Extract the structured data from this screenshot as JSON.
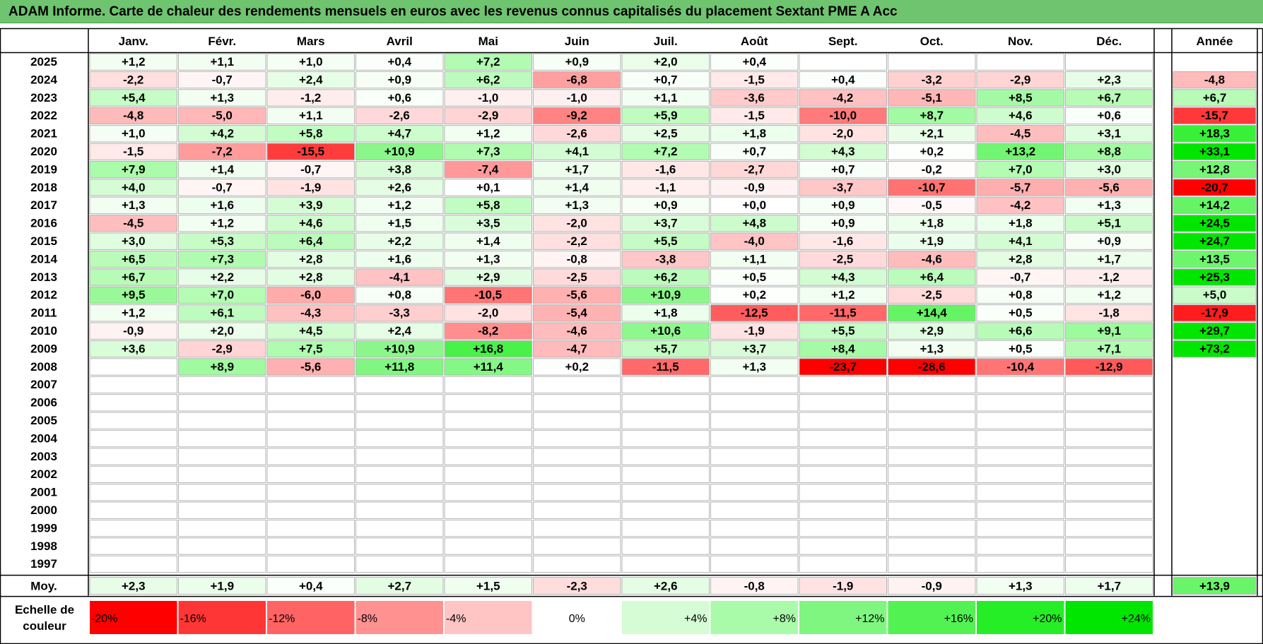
{
  "title": "ADAM Informe. Carte de chaleur des rendements mensuels en euros avec les revenus connus capitalisés du placement Sextant PME A Acc",
  "chart_data": {
    "type": "heatmap",
    "title": "ADAM Informe. Carte de chaleur des rendements mensuels en euros avec les revenus connus capitalisés du placement Sextant PME A Acc",
    "months": [
      "Janv.",
      "Févr.",
      "Mars",
      "Avril",
      "Mai",
      "Juin",
      "Juil.",
      "Août",
      "Sept.",
      "Oct.",
      "Nov.",
      "Déc."
    ],
    "year_header": "Année",
    "rows": [
      {
        "label": "2025",
        "months": [
          "+1,2",
          "+1,1",
          "+1,0",
          "+0,4",
          "+7,2",
          "+0,9",
          "+2,0",
          "+0,4",
          "",
          "",
          "",
          ""
        ],
        "year": ""
      },
      {
        "label": "2024",
        "months": [
          "-2,2",
          "-0,7",
          "+2,4",
          "+0,9",
          "+6,2",
          "-6,8",
          "+0,7",
          "-1,5",
          "+0,4",
          "-3,2",
          "-2,9",
          "+2,3"
        ],
        "year": "-4,8"
      },
      {
        "label": "2023",
        "months": [
          "+5,4",
          "+1,3",
          "-1,2",
          "+0,6",
          "-1,0",
          "-1,0",
          "+1,1",
          "-3,6",
          "-4,2",
          "-5,1",
          "+8,5",
          "+6,7"
        ],
        "year": "+6,7"
      },
      {
        "label": "2022",
        "months": [
          "-4,8",
          "-5,0",
          "+1,1",
          "-2,6",
          "-2,9",
          "-9,2",
          "+5,9",
          "-1,5",
          "-10,0",
          "+8,7",
          "+4,6",
          "+0,6"
        ],
        "year": "-15,7"
      },
      {
        "label": "2021",
        "months": [
          "+1,0",
          "+4,2",
          "+5,8",
          "+4,7",
          "+1,2",
          "-2,6",
          "+2,5",
          "+1,8",
          "-2,0",
          "+2,1",
          "-4,5",
          "+3,1"
        ],
        "year": "+18,3"
      },
      {
        "label": "2020",
        "months": [
          "-1,5",
          "-7,2",
          "-15,5",
          "+10,9",
          "+7,3",
          "+4,1",
          "+7,2",
          "+0,7",
          "+4,3",
          "+0,2",
          "+13,2",
          "+8,8"
        ],
        "year": "+33,1"
      },
      {
        "label": "2019",
        "months": [
          "+7,9",
          "+1,4",
          "-0,7",
          "+3,8",
          "-7,4",
          "+1,7",
          "-1,6",
          "-2,7",
          "+0,7",
          "-0,2",
          "+7,0",
          "+3,0"
        ],
        "year": "+12,8"
      },
      {
        "label": "2018",
        "months": [
          "+4,0",
          "-0,7",
          "-1,9",
          "+2,6",
          "+0,1",
          "+1,4",
          "-1,1",
          "-0,9",
          "-3,7",
          "-10,7",
          "-5,7",
          "-5,6"
        ],
        "year": "-20,7"
      },
      {
        "label": "2017",
        "months": [
          "+1,3",
          "+1,6",
          "+3,9",
          "+1,2",
          "+5,8",
          "+1,3",
          "+0,9",
          "+0,0",
          "+0,9",
          "-0,5",
          "-4,2",
          "+1,3"
        ],
        "year": "+14,2"
      },
      {
        "label": "2016",
        "months": [
          "-4,5",
          "+1,2",
          "+4,6",
          "+1,5",
          "+3,5",
          "-2,0",
          "+3,7",
          "+4,8",
          "+0,9",
          "+1,8",
          "+1,8",
          "+5,1"
        ],
        "year": "+24,5"
      },
      {
        "label": "2015",
        "months": [
          "+3,0",
          "+5,3",
          "+6,4",
          "+2,2",
          "+1,4",
          "-2,2",
          "+5,5",
          "-4,0",
          "-1,6",
          "+1,9",
          "+4,1",
          "+0,9"
        ],
        "year": "+24,7"
      },
      {
        "label": "2014",
        "months": [
          "+6,5",
          "+7,3",
          "+2,8",
          "+1,6",
          "+1,3",
          "-0,8",
          "-3,8",
          "+1,1",
          "-2,5",
          "-4,6",
          "+2,8",
          "+1,7"
        ],
        "year": "+13,5"
      },
      {
        "label": "2013",
        "months": [
          "+6,7",
          "+2,2",
          "+2,8",
          "-4,1",
          "+2,9",
          "-2,5",
          "+6,2",
          "+0,5",
          "+4,3",
          "+6,4",
          "-0,7",
          "-1,2"
        ],
        "year": "+25,3"
      },
      {
        "label": "2012",
        "months": [
          "+9,5",
          "+7,0",
          "-6,0",
          "+0,8",
          "-10,5",
          "-5,6",
          "+10,9",
          "+0,2",
          "+1,2",
          "-2,5",
          "+0,8",
          "+1,2"
        ],
        "year": "+5,0"
      },
      {
        "label": "2011",
        "months": [
          "+1,2",
          "+6,1",
          "-4,3",
          "-3,3",
          "-2,0",
          "-5,4",
          "+1,8",
          "-12,5",
          "-11,5",
          "+14,4",
          "+0,5",
          "-1,8"
        ],
        "year": "-17,9"
      },
      {
        "label": "2010",
        "months": [
          "-0,9",
          "+2,0",
          "+4,5",
          "+2,4",
          "-8,2",
          "-4,6",
          "+10,6",
          "-1,9",
          "+5,5",
          "+2,9",
          "+6,6",
          "+9,1"
        ],
        "year": "+29,7"
      },
      {
        "label": "2009",
        "months": [
          "+3,6",
          "-2,9",
          "+7,5",
          "+10,9",
          "+16,8",
          "-4,7",
          "+5,7",
          "+3,7",
          "+8,4",
          "+1,3",
          "+0,5",
          "+7,1"
        ],
        "year": "+73,2"
      },
      {
        "label": "2008",
        "months": [
          "",
          "+8,9",
          "-5,6",
          "+11,8",
          "+11,4",
          "+0,2",
          "-11,5",
          "+1,3",
          "-23,7",
          "-28,6",
          "-10,4",
          "-12,9"
        ],
        "year": ""
      },
      {
        "label": "2007",
        "months": [
          "",
          "",
          "",
          "",
          "",
          "",
          "",
          "",
          "",
          "",
          "",
          ""
        ],
        "year": ""
      },
      {
        "label": "2006",
        "months": [
          "",
          "",
          "",
          "",
          "",
          "",
          "",
          "",
          "",
          "",
          "",
          ""
        ],
        "year": ""
      },
      {
        "label": "2005",
        "months": [
          "",
          "",
          "",
          "",
          "",
          "",
          "",
          "",
          "",
          "",
          "",
          ""
        ],
        "year": ""
      },
      {
        "label": "2004",
        "months": [
          "",
          "",
          "",
          "",
          "",
          "",
          "",
          "",
          "",
          "",
          "",
          ""
        ],
        "year": ""
      },
      {
        "label": "2003",
        "months": [
          "",
          "",
          "",
          "",
          "",
          "",
          "",
          "",
          "",
          "",
          "",
          ""
        ],
        "year": ""
      },
      {
        "label": "2002",
        "months": [
          "",
          "",
          "",
          "",
          "",
          "",
          "",
          "",
          "",
          "",
          "",
          ""
        ],
        "year": ""
      },
      {
        "label": "2001",
        "months": [
          "",
          "",
          "",
          "",
          "",
          "",
          "",
          "",
          "",
          "",
          "",
          ""
        ],
        "year": ""
      },
      {
        "label": "2000",
        "months": [
          "",
          "",
          "",
          "",
          "",
          "",
          "",
          "",
          "",
          "",
          "",
          ""
        ],
        "year": ""
      },
      {
        "label": "1999",
        "months": [
          "",
          "",
          "",
          "",
          "",
          "",
          "",
          "",
          "",
          "",
          "",
          ""
        ],
        "year": ""
      },
      {
        "label": "1998",
        "months": [
          "",
          "",
          "",
          "",
          "",
          "",
          "",
          "",
          "",
          "",
          "",
          ""
        ],
        "year": ""
      },
      {
        "label": "1997",
        "months": [
          "",
          "",
          "",
          "",
          "",
          "",
          "",
          "",
          "",
          "",
          "",
          ""
        ],
        "year": ""
      }
    ],
    "average_row": {
      "label": "Moy.",
      "months": [
        "+2,3",
        "+1,9",
        "+0,4",
        "+2,7",
        "+1,5",
        "-2,3",
        "+2,6",
        "-0,8",
        "-1,9",
        "-0,9",
        "+1,3",
        "+1,7"
      ],
      "year": "+13,9"
    },
    "color_scale": {
      "label": "Echelle de couleur",
      "stops": [
        {
          "label": "-20%",
          "value": -20,
          "color": "#ff0000"
        },
        {
          "label": "-16%",
          "value": -16,
          "color": "#ff3636"
        },
        {
          "label": "-12%",
          "value": -12,
          "color": "#ff6363"
        },
        {
          "label": "-8%",
          "value": -8,
          "color": "#ff9191"
        },
        {
          "label": "-4%",
          "value": -4,
          "color": "#ffc4c4"
        },
        {
          "label": "0%",
          "value": 0,
          "color": "#ffffff"
        },
        {
          "label": "+4%",
          "value": 4,
          "color": "#d5fcd5"
        },
        {
          "label": "+8%",
          "value": 8,
          "color": "#a9fba9"
        },
        {
          "label": "+12%",
          "value": 12,
          "color": "#7ff67f"
        },
        {
          "label": "+16%",
          "value": 16,
          "color": "#52f252"
        },
        {
          "label": "+20%",
          "value": 20,
          "color": "#26ee26"
        },
        {
          "label": "+24%",
          "value": 24,
          "color": "#00e600"
        }
      ]
    },
    "colors": {
      "title_bar": "#6fc46f",
      "grid": "#b4b4b4",
      "border": "#000000"
    }
  }
}
